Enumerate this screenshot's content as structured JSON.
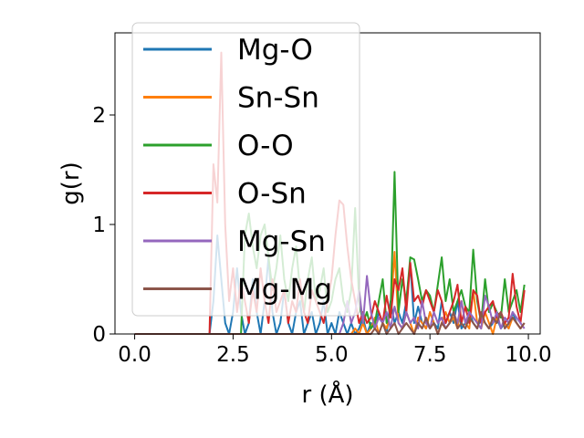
{
  "chart_data": {
    "type": "line",
    "title": "",
    "xlabel": "r (Å)",
    "ylabel": "g(r)",
    "xlim": [
      -0.5,
      10.3
    ],
    "ylim": [
      0,
      2.75
    ],
    "xticks": [
      0.0,
      2.5,
      5.0,
      7.5,
      10.0
    ],
    "xtick_labels": [
      "0.0",
      "2.5",
      "5.0",
      "7.5",
      "10.0"
    ],
    "yticks": [
      0,
      1,
      2
    ],
    "ytick_labels": [
      "0",
      "1",
      "2"
    ],
    "grid": false,
    "legend_position": "top-left",
    "series": [
      {
        "name": "Mg-O",
        "color": "#1f77b4",
        "x": [
          0,
          1.9,
          2.0,
          2.1,
          2.2,
          2.3,
          2.4,
          2.5,
          2.6,
          2.7,
          2.8,
          2.9,
          3.0,
          3.1,
          3.2,
          3.3,
          3.4,
          3.5,
          3.6,
          3.7,
          3.8,
          3.9,
          4.0,
          4.1,
          4.2,
          4.3,
          4.4,
          4.5,
          4.6,
          4.7,
          4.8,
          4.9,
          5.0,
          5.1,
          5.2,
          5.3,
          5.4,
          5.5,
          5.6,
          5.7,
          5.8,
          5.9,
          6.0,
          6.1,
          6.2,
          6.3,
          6.4,
          6.5,
          6.6,
          6.7,
          6.8,
          6.9,
          7.0,
          7.1,
          7.2,
          7.3,
          7.4,
          7.5,
          7.6,
          7.7,
          7.8,
          7.9,
          8.0,
          8.1,
          8.2,
          8.3,
          8.4,
          8.5,
          8.6,
          8.7,
          8.8,
          8.9,
          9.0,
          9.1,
          9.2,
          9.3,
          9.4,
          9.5,
          9.6,
          9.7,
          9.8,
          9.9
        ],
        "y": [
          0,
          0,
          0.3,
          0.9,
          0.5,
          0.1,
          0,
          0.2,
          0.6,
          0.2,
          0,
          0.1,
          0.5,
          0.2,
          0,
          0.3,
          0.7,
          0.2,
          0,
          0.1,
          0.4,
          0.1,
          0,
          0.2,
          0.3,
          0,
          0.1,
          0.2,
          0,
          0.1,
          0.3,
          0,
          0.1,
          0,
          0.2,
          0.1,
          0,
          0.1,
          0,
          0.05,
          0.15,
          0,
          0.1,
          0.05,
          0.2,
          0.1,
          0,
          0.3,
          0.1,
          0.2,
          0.1,
          0.3,
          0.65,
          0.1,
          0.25,
          0.1,
          0.05,
          0.2,
          0.1,
          0.05,
          0.3,
          0.1,
          0.2,
          0.1,
          0.3,
          0.05,
          0.1,
          0.2,
          0.1,
          0.05,
          0.15,
          0.1,
          0.05,
          0.1,
          0.15,
          0.05,
          0.1,
          0.05,
          0.2,
          0.1,
          0.05,
          0.1
        ]
      },
      {
        "name": "Sn-Sn",
        "color": "#ff7f0e",
        "x": [
          0,
          5.5,
          5.6,
          5.7,
          5.8,
          5.9,
          6.0,
          6.1,
          6.2,
          6.3,
          6.4,
          6.5,
          6.6,
          6.7,
          6.8,
          6.9,
          7.0,
          7.1,
          7.2,
          7.3,
          7.4,
          7.5,
          7.6,
          7.7,
          7.8,
          7.9,
          8.0,
          8.1,
          8.2,
          8.3,
          8.4,
          8.5,
          8.6,
          8.7,
          8.8,
          8.9,
          9.0,
          9.1,
          9.2,
          9.3,
          9.4,
          9.5,
          9.6,
          9.7,
          9.8,
          9.9
        ],
        "y": [
          0,
          0,
          0.05,
          0,
          0.1,
          0,
          0.05,
          0.15,
          0,
          0.1,
          0.05,
          0.2,
          0.75,
          0.1,
          0.05,
          0.2,
          0.1,
          0,
          0.15,
          0.1,
          0.05,
          0.2,
          0.1,
          0,
          0.1,
          0.2,
          0.1,
          0.15,
          0.05,
          0.3,
          0.1,
          0.05,
          0.4,
          0.1,
          0.05,
          0.2,
          0.1,
          0,
          0.15,
          0.2,
          0.1,
          0.05,
          0.15,
          0.1,
          0.05,
          0.1
        ]
      },
      {
        "name": "O-O",
        "color": "#2ca02c",
        "x": [
          0,
          2.7,
          2.8,
          2.9,
          3.0,
          3.1,
          3.2,
          3.3,
          3.4,
          3.5,
          3.6,
          3.7,
          3.8,
          3.9,
          4.0,
          4.1,
          4.2,
          4.3,
          4.4,
          4.5,
          4.6,
          4.7,
          4.8,
          4.9,
          5.0,
          5.1,
          5.2,
          5.3,
          5.4,
          5.5,
          5.6,
          5.7,
          5.8,
          5.9,
          6.0,
          6.1,
          6.2,
          6.3,
          6.4,
          6.5,
          6.6,
          6.7,
          6.8,
          6.9,
          7.0,
          7.1,
          7.2,
          7.3,
          7.4,
          7.5,
          7.6,
          7.7,
          7.8,
          7.9,
          8.0,
          8.1,
          8.2,
          8.3,
          8.4,
          8.5,
          8.6,
          8.7,
          8.8,
          8.9,
          9.0,
          9.1,
          9.2,
          9.3,
          9.4,
          9.5,
          9.6,
          9.7,
          9.8,
          9.9
        ],
        "y": [
          0,
          0,
          0.9,
          1.1,
          0.8,
          0.6,
          0.9,
          1.0,
          0.7,
          0.4,
          0.6,
          0.9,
          0.5,
          0.3,
          0.6,
          0.8,
          0.4,
          0.2,
          0.5,
          0.7,
          0.3,
          0.4,
          0.6,
          0.2,
          0.3,
          0.5,
          0.6,
          0.3,
          0.2,
          0.4,
          1.15,
          0.3,
          0.1,
          0.2,
          0.05,
          0.1,
          0.3,
          0.5,
          0.1,
          0.2,
          1.48,
          0.2,
          0.5,
          0.3,
          0.7,
          0.68,
          0.5,
          0.3,
          0.4,
          0.35,
          0.2,
          0.45,
          0.7,
          0.3,
          0.5,
          0.2,
          0.3,
          0.4,
          0.25,
          0.2,
          0.77,
          0.3,
          0.1,
          0.5,
          0.2,
          0.28,
          0.2,
          0.15,
          0.5,
          0.2,
          0.3,
          0.4,
          0.2,
          0.45
        ]
      },
      {
        "name": "O-Sn",
        "color": "#d62728",
        "x": [
          0,
          1.9,
          2.0,
          2.1,
          2.2,
          2.3,
          2.4,
          2.5,
          2.6,
          2.7,
          2.8,
          2.9,
          3.0,
          3.1,
          3.2,
          3.3,
          3.4,
          3.5,
          3.6,
          3.7,
          3.8,
          3.9,
          4.0,
          4.1,
          4.2,
          4.3,
          4.4,
          4.5,
          4.6,
          4.7,
          4.8,
          4.9,
          5.0,
          5.1,
          5.2,
          5.3,
          5.4,
          5.5,
          5.6,
          5.7,
          5.8,
          5.9,
          6.0,
          6.1,
          6.2,
          6.3,
          6.4,
          6.5,
          6.6,
          6.7,
          6.8,
          6.9,
          7.0,
          7.1,
          7.2,
          7.3,
          7.4,
          7.5,
          7.6,
          7.7,
          7.8,
          7.9,
          8.0,
          8.1,
          8.2,
          8.3,
          8.4,
          8.5,
          8.6,
          8.7,
          8.8,
          8.9,
          9.0,
          9.1,
          9.2,
          9.3,
          9.4,
          9.5,
          9.6,
          9.7,
          9.8,
          9.9
        ],
        "y": [
          0,
          0,
          1.55,
          1.2,
          2.57,
          1.0,
          0.3,
          0.6,
          0.2,
          0.5,
          0.3,
          0.1,
          0.4,
          0.2,
          0.6,
          0.3,
          0.1,
          0.5,
          0.2,
          0.3,
          0.4,
          0.1,
          0.3,
          0.2,
          0.5,
          0.2,
          0.1,
          0.4,
          0.3,
          0.2,
          0.1,
          0.3,
          0.5,
          0.9,
          1.22,
          1.18,
          0.8,
          0.5,
          0.3,
          0.1,
          0.2,
          0.1,
          0.15,
          0.3,
          0.2,
          0.1,
          0.35,
          0.15,
          0.5,
          0.4,
          0.6,
          0.2,
          0.65,
          0.3,
          0.35,
          0.25,
          0.4,
          0.3,
          0.2,
          0.4,
          0.3,
          0.1,
          0.2,
          0.3,
          0.45,
          0.1,
          0.25,
          0.1,
          0.4,
          0.35,
          0.1,
          0.2,
          0.25,
          0.3,
          0.15,
          0.2,
          0.1,
          0.15,
          0.55,
          0.25,
          0.1,
          0.4
        ]
      },
      {
        "name": "Mg-Sn",
        "color": "#9467bd",
        "x": [
          0,
          5.2,
          5.3,
          5.4,
          5.5,
          5.6,
          5.7,
          5.8,
          5.9,
          6.0,
          6.1,
          6.2,
          6.3,
          6.4,
          6.5,
          6.6,
          6.7,
          6.8,
          6.9,
          7.0,
          7.1,
          7.2,
          7.3,
          7.4,
          7.5,
          7.6,
          7.7,
          7.8,
          7.9,
          8.0,
          8.1,
          8.2,
          8.3,
          8.4,
          8.5,
          8.6,
          8.7,
          8.8,
          8.9,
          9.0,
          9.1,
          9.2,
          9.3,
          9.4,
          9.5,
          9.6,
          9.7,
          9.8,
          9.9
        ],
        "y": [
          0,
          0,
          0.1,
          0.3,
          0.1,
          0.2,
          0.4,
          0.1,
          0.53,
          0.2,
          0.05,
          0.15,
          0.1,
          0.2,
          0.05,
          0.25,
          0.1,
          0.05,
          0.2,
          0.1,
          0.15,
          0.05,
          0.3,
          0.1,
          0.05,
          0.2,
          0.1,
          0.15,
          0.05,
          0.1,
          0.2,
          0.1,
          0.3,
          0.1,
          0.2,
          0.15,
          0.1,
          0.05,
          0.35,
          0.25,
          0.1,
          0.2,
          0.05,
          0.15,
          0.1,
          0.2,
          0.15,
          0.1,
          0.05
        ]
      },
      {
        "name": "Mg-Mg",
        "color": "#8c564b",
        "x": [
          0,
          6.0,
          6.1,
          6.2,
          6.3,
          6.4,
          6.5,
          6.6,
          6.7,
          6.8,
          6.9,
          7.0,
          7.1,
          7.2,
          7.3,
          7.4,
          7.5,
          7.6,
          7.7,
          7.8,
          7.9,
          8.0,
          8.1,
          8.2,
          8.3,
          8.4,
          8.5,
          8.6,
          8.7,
          8.8,
          8.9,
          9.0,
          9.1,
          9.2,
          9.3,
          9.4,
          9.5,
          9.6,
          9.7,
          9.8,
          9.9
        ],
        "y": [
          0,
          0,
          0.05,
          0,
          0.1,
          0,
          0.05,
          0.1,
          0,
          0.05,
          0.1,
          0.05,
          0,
          0.1,
          0.05,
          0.15,
          0.05,
          0.1,
          0,
          0.1,
          0.05,
          0.1,
          0.2,
          0.05,
          0.1,
          0.05,
          0.15,
          0.1,
          0.05,
          0.2,
          0.1,
          0.05,
          0.15,
          0.1,
          0.2,
          0.05,
          0.1,
          0.15,
          0.1,
          0.05,
          0.1
        ]
      }
    ]
  }
}
